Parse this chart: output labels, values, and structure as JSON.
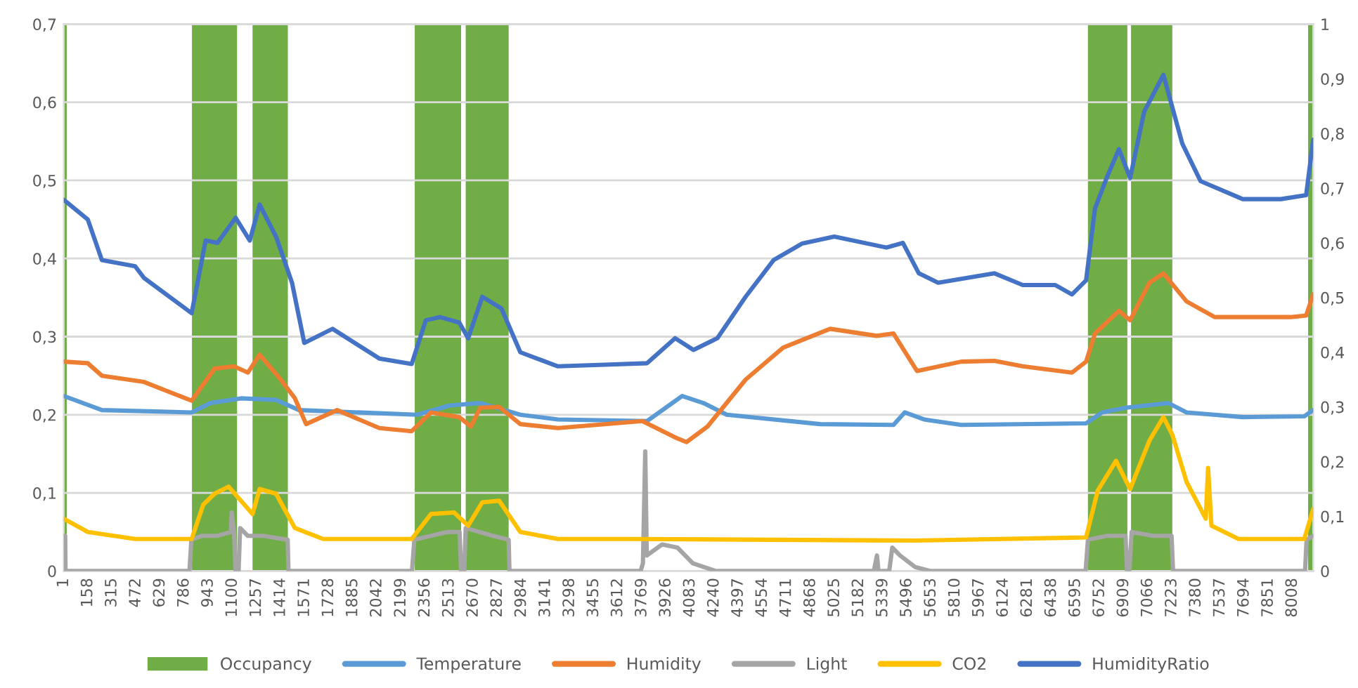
{
  "chart_data": {
    "type": "line",
    "xticks": [
      1,
      158,
      315,
      472,
      629,
      786,
      943,
      1100,
      1257,
      1414,
      1571,
      1728,
      1885,
      2042,
      2199,
      2356,
      2513,
      2670,
      2827,
      2984,
      3141,
      3298,
      3455,
      3612,
      3769,
      3926,
      4083,
      4240,
      4397,
      4554,
      4711,
      4868,
      5025,
      5182,
      5339,
      5496,
      5653,
      5810,
      5967,
      6124,
      6281,
      6438,
      6595,
      6752,
      6909,
      7066,
      7223,
      7380,
      7537,
      7694,
      7851,
      8008
    ],
    "xlim": [
      1,
      8143
    ],
    "ylim": [
      0,
      0.7
    ],
    "yticks": [
      {
        "value": 0,
        "label": "0"
      },
      {
        "value": 0.1,
        "label": "0,1"
      },
      {
        "value": 0.2,
        "label": "0,2"
      },
      {
        "value": 0.3,
        "label": "0,3"
      },
      {
        "value": 0.4,
        "label": "0,4"
      },
      {
        "value": 0.5,
        "label": "0,5"
      },
      {
        "value": 0.6,
        "label": "0,6"
      },
      {
        "value": 0.7,
        "label": "0,7"
      }
    ],
    "y2lim": [
      0,
      1
    ],
    "y2ticks": [
      {
        "value": 0,
        "label": "0"
      },
      {
        "value": 0.1,
        "label": "0,1"
      },
      {
        "value": 0.2,
        "label": "0,2"
      },
      {
        "value": 0.3,
        "label": "0,3"
      },
      {
        "value": 0.4,
        "label": "0,4"
      },
      {
        "value": 0.5,
        "label": "0,5"
      },
      {
        "value": 0.6,
        "label": "0,6"
      },
      {
        "value": 0.7,
        "label": "0,7"
      },
      {
        "value": 0.8,
        "label": "0,8"
      },
      {
        "value": 0.9,
        "label": "0,9"
      },
      {
        "value": 1,
        "label": "1"
      }
    ],
    "grid": "y",
    "legend": "bottom",
    "series": [
      {
        "name": "Occupancy",
        "type": "area",
        "axis": "y2",
        "color": "#70ad47",
        "x": [
          1,
          1,
          20,
          20,
          836,
          836,
          1130,
          1130,
          1231,
          1231,
          1461,
          1461,
          2288,
          2288,
          2590,
          2590,
          2620,
          2620,
          2900,
          2900,
          6675,
          6675,
          6932,
          6932,
          6956,
          6956,
          7225,
          7225,
          8110,
          8110,
          8143,
          8143
        ],
        "values": [
          0,
          1,
          1,
          0,
          0,
          1,
          1,
          0,
          0,
          1,
          1,
          0,
          0,
          1,
          1,
          0,
          0,
          1,
          1,
          0,
          0,
          1,
          1,
          0,
          0,
          1,
          1,
          0,
          0,
          1,
          1,
          0
        ]
      },
      {
        "name": "Temperature",
        "color": "#5b9bd5",
        "x": [
          1,
          249,
          834,
          956,
          1155,
          1384,
          1534,
          2302,
          2517,
          2715,
          2976,
          3221,
          3802,
          4031,
          4169,
          4322,
          4930,
          5408,
          5481,
          5607,
          5849,
          6663,
          6767,
          6923,
          7199,
          7318,
          7684,
          8085,
          8143
        ],
        "values": [
          0.224,
          0.206,
          0.203,
          0.215,
          0.221,
          0.219,
          0.206,
          0.2,
          0.212,
          0.215,
          0.2,
          0.194,
          0.192,
          0.224,
          0.215,
          0.2,
          0.188,
          0.187,
          0.203,
          0.194,
          0.187,
          0.189,
          0.203,
          0.209,
          0.215,
          0.203,
          0.197,
          0.198,
          0.206
        ]
      },
      {
        "name": "Humidity",
        "color": "#ed7d31",
        "x": [
          1,
          157,
          249,
          524,
          834,
          983,
          1109,
          1201,
          1277,
          1415,
          1507,
          1580,
          1782,
          2057,
          2268,
          2394,
          2578,
          2654,
          2715,
          2838,
          2976,
          3221,
          3771,
          3985,
          4059,
          4196,
          4444,
          4689,
          4995,
          5298,
          5408,
          5561,
          5849,
          6066,
          6250,
          6571,
          6663,
          6721,
          6877,
          6950,
          7076,
          7167,
          7318,
          7501,
          7994,
          8097,
          8143
        ],
        "values": [
          0.268,
          0.266,
          0.25,
          0.242,
          0.218,
          0.259,
          0.262,
          0.254,
          0.277,
          0.245,
          0.221,
          0.188,
          0.206,
          0.183,
          0.179,
          0.203,
          0.197,
          0.185,
          0.209,
          0.21,
          0.188,
          0.183,
          0.192,
          0.171,
          0.165,
          0.185,
          0.245,
          0.286,
          0.31,
          0.301,
          0.304,
          0.256,
          0.268,
          0.269,
          0.262,
          0.254,
          0.268,
          0.304,
          0.333,
          0.321,
          0.369,
          0.381,
          0.345,
          0.325,
          0.325,
          0.327,
          0.354
        ]
      },
      {
        "name": "Light",
        "color": "#a5a5a5",
        "x": [
          1,
          10,
          12,
          820,
          832,
          900,
          1000,
          1090,
          1095,
          1110,
          1120,
          1140,
          1150,
          1200,
          1300,
          1460,
          1465,
          2270,
          2285,
          2500,
          2580,
          2590,
          2610,
          2620,
          2800,
          2900,
          2905,
          3760,
          3775,
          3790,
          3800,
          3900,
          4000,
          4100,
          4250,
          5280,
          5300,
          5310,
          5380,
          5400,
          5450,
          5550,
          5650,
          6660,
          6675,
          6800,
          6920,
          6930,
          6945,
          6960,
          7100,
          7220,
          7230,
          8090,
          8100,
          8143
        ],
        "values": [
          0.045,
          0.045,
          0,
          0,
          0.04,
          0.045,
          0.045,
          0.05,
          0.075,
          0.05,
          0,
          0,
          0.055,
          0.045,
          0.045,
          0.04,
          0,
          0,
          0.04,
          0.05,
          0.05,
          0,
          0,
          0.055,
          0.045,
          0.04,
          0,
          0,
          0.01,
          0.153,
          0.02,
          0.034,
          0.03,
          0.01,
          0,
          0,
          0.02,
          0,
          0,
          0.03,
          0.02,
          0.005,
          0,
          0,
          0.04,
          0.045,
          0.045,
          0,
          0,
          0.05,
          0.045,
          0.045,
          0,
          0,
          0.04,
          0.045
        ]
      },
      {
        "name": "CO2",
        "color": "#ffc000",
        "x": [
          1,
          157,
          466,
          834,
          910,
          983,
          1075,
          1231,
          1277,
          1384,
          1507,
          1691,
          2268,
          2394,
          2544,
          2636,
          2728,
          2838,
          2976,
          3221,
          3710,
          5546,
          6663,
          6739,
          6858,
          6950,
          7076,
          7167,
          7226,
          7318,
          7443,
          7458,
          7480,
          7657,
          8085,
          8143
        ],
        "values": [
          0.067,
          0.05,
          0.041,
          0.041,
          0.085,
          0.099,
          0.108,
          0.073,
          0.105,
          0.099,
          0.055,
          0.041,
          0.041,
          0.073,
          0.075,
          0.058,
          0.088,
          0.09,
          0.05,
          0.041,
          0.041,
          0.039,
          0.043,
          0.103,
          0.141,
          0.105,
          0.167,
          0.197,
          0.174,
          0.114,
          0.067,
          0.132,
          0.058,
          0.041,
          0.041,
          0.079
        ]
      },
      {
        "name": "HumidityRatio",
        "color": "#4472c4",
        "x": [
          1,
          157,
          249,
          466,
          524,
          834,
          925,
          1002,
          1121,
          1213,
          1277,
          1384,
          1488,
          1568,
          1752,
          2057,
          2268,
          2360,
          2452,
          2578,
          2636,
          2728,
          2853,
          2976,
          3221,
          3526,
          3802,
          3985,
          4104,
          4260,
          4444,
          4627,
          4811,
          5022,
          5362,
          5469,
          5573,
          5699,
          6066,
          6250,
          6463,
          6571,
          6663,
          6721,
          6801,
          6877,
          6950,
          7042,
          7167,
          7290,
          7409,
          7684,
          7932,
          8097,
          8143
        ],
        "values": [
          0.475,
          0.45,
          0.398,
          0.39,
          0.375,
          0.33,
          0.423,
          0.42,
          0.452,
          0.423,
          0.469,
          0.428,
          0.369,
          0.292,
          0.31,
          0.272,
          0.265,
          0.321,
          0.325,
          0.318,
          0.298,
          0.351,
          0.336,
          0.28,
          0.262,
          0.264,
          0.266,
          0.298,
          0.283,
          0.298,
          0.351,
          0.398,
          0.419,
          0.428,
          0.414,
          0.42,
          0.381,
          0.369,
          0.381,
          0.366,
          0.366,
          0.354,
          0.372,
          0.464,
          0.505,
          0.54,
          0.503,
          0.588,
          0.635,
          0.547,
          0.499,
          0.476,
          0.476,
          0.481,
          0.552
        ]
      }
    ]
  }
}
